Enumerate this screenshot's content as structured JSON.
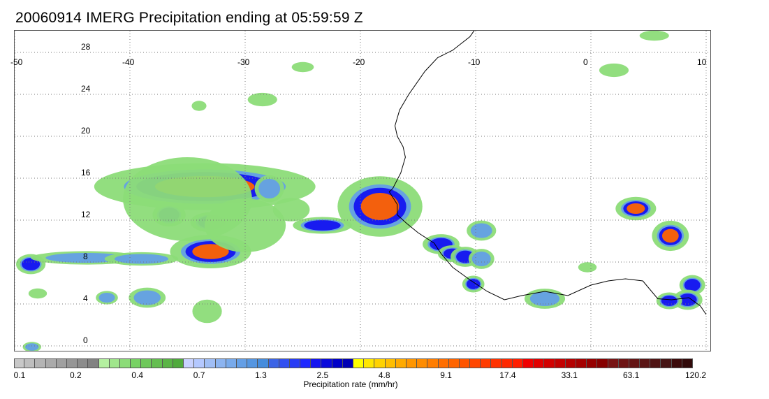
{
  "title": "20060914 IMERG Precipitation ending at 05:59:59 Z",
  "map": {
    "lon_min": -50,
    "lon_max": 10,
    "lat_min": -1,
    "lat_max": 30,
    "lon_ticks": [
      -50,
      -40,
      -30,
      -20,
      -10,
      0,
      10
    ],
    "lon_labels": [
      "-50",
      "-40",
      "-30",
      "-20",
      "-10",
      "0",
      "10"
    ],
    "lat_ticks": [
      0,
      4,
      8,
      12,
      16,
      20,
      24,
      28
    ],
    "lat_labels": [
      "0",
      "4",
      "8",
      "12",
      "16",
      "20",
      "24",
      "28"
    ],
    "gridlines": true,
    "coastline_color": "#000000"
  },
  "colorbar": {
    "label": "Precipitation rate (mm/hr)",
    "tick_labels": [
      "0.1",
      "0.2",
      "0.4",
      "0.7",
      "1.3",
      "2.5",
      "4.8",
      "9.1",
      "17.4",
      "33.1",
      "63.1",
      "120.2"
    ],
    "colors": [
      "#c8c8c8",
      "#bebebe",
      "#b4b4b4",
      "#aaaaaa",
      "#a0a0a0",
      "#969696",
      "#8c8c8c",
      "#828282",
      "#b4f0a0",
      "#a0e68c",
      "#8cdc78",
      "#78d264",
      "#6ec85a",
      "#64be50",
      "#5ab446",
      "#50aa3c",
      "#c8d2ff",
      "#b4c8ff",
      "#a0bef5",
      "#8cb4f0",
      "#78aaeb",
      "#649fe6",
      "#5596e1",
      "#468cdc",
      "#3c64e6",
      "#3250f0",
      "#283cf5",
      "#1e28ff",
      "#1414f0",
      "#0a0adc",
      "#0000c8",
      "#0000b4",
      "#ffff00",
      "#ffe600",
      "#ffd200",
      "#ffbe00",
      "#ffaa00",
      "#ff9600",
      "#ff8c00",
      "#ff7d00",
      "#ff6e00",
      "#ff6400",
      "#ff5500",
      "#ff4600",
      "#ff3c00",
      "#ff3200",
      "#ff2800",
      "#ff1e00",
      "#f00000",
      "#e10000",
      "#d20000",
      "#c30000",
      "#b40000",
      "#a50000",
      "#960000",
      "#870000",
      "#781414",
      "#6e1414",
      "#641414",
      "#5a1414",
      "#501414",
      "#461414",
      "#3c0a0a",
      "#320a0a"
    ]
  },
  "precip_cells": [
    {
      "lon": -33.5,
      "lat": 15.2,
      "rx": 6.0,
      "ry": 1.4,
      "level": 3
    },
    {
      "lon": -33.0,
      "lat": 9.0,
      "rx": 2.2,
      "ry": 1.0,
      "level": 3
    },
    {
      "lon": -18.3,
      "lat": 13.3,
      "rx": 2.3,
      "ry": 1.8,
      "level": 3
    },
    {
      "lon": -13.0,
      "lat": 9.7,
      "rx": 1.0,
      "ry": 0.6,
      "level": 2
    },
    {
      "lon": -12.0,
      "lat": 8.8,
      "rx": 0.8,
      "ry": 0.5,
      "level": 2
    },
    {
      "lon": -10.9,
      "lat": 8.5,
      "rx": 0.8,
      "ry": 0.6,
      "level": 2
    },
    {
      "lon": -10.2,
      "lat": 5.9,
      "rx": 0.6,
      "ry": 0.5,
      "level": 2
    },
    {
      "lon": -23.3,
      "lat": 11.5,
      "rx": 1.6,
      "ry": 0.5,
      "level": 2
    },
    {
      "lon": -36.6,
      "lat": 12.5,
      "rx": 0.9,
      "ry": 0.7,
      "level": 2
    },
    {
      "lon": -33.0,
      "lat": 11.8,
      "rx": 1.1,
      "ry": 0.6,
      "level": 2
    },
    {
      "lon": -48.6,
      "lat": 7.8,
      "rx": 0.8,
      "ry": 0.6,
      "level": 2
    },
    {
      "lon": 3.9,
      "lat": 13.1,
      "rx": 1.1,
      "ry": 0.7,
      "level": 3
    },
    {
      "lon": 6.9,
      "lat": 10.5,
      "rx": 1.0,
      "ry": 0.9,
      "level": 3
    },
    {
      "lon": 8.8,
      "lat": 5.8,
      "rx": 0.7,
      "ry": 0.6,
      "level": 2
    },
    {
      "lon": 8.4,
      "lat": 4.4,
      "rx": 0.8,
      "ry": 0.6,
      "level": 2
    },
    {
      "lon": 6.8,
      "lat": 4.3,
      "rx": 0.7,
      "ry": 0.5,
      "level": 2
    },
    {
      "lon": -38.5,
      "lat": 4.6,
      "rx": 1.0,
      "ry": 0.6,
      "level": 1
    },
    {
      "lon": -42.0,
      "lat": 4.6,
      "rx": 0.6,
      "ry": 0.4,
      "level": 1
    },
    {
      "lon": -33.3,
      "lat": 3.3,
      "rx": 0.8,
      "ry": 0.7,
      "level": 0
    },
    {
      "lon": -4.0,
      "lat": 4.5,
      "rx": 1.1,
      "ry": 0.6,
      "level": 1
    },
    {
      "lon": -9.5,
      "lat": 11.0,
      "rx": 0.8,
      "ry": 0.6,
      "level": 1
    },
    {
      "lon": -9.5,
      "lat": 8.3,
      "rx": 0.7,
      "ry": 0.6,
      "level": 1
    },
    {
      "lon": -43.8,
      "lat": 8.4,
      "rx": 3.0,
      "ry": 0.4,
      "level": 1
    },
    {
      "lon": -39.0,
      "lat": 8.3,
      "rx": 2.0,
      "ry": 0.4,
      "level": 1
    },
    {
      "lon": -27.9,
      "lat": 15.0,
      "rx": 0.8,
      "ry": 0.8,
      "level": 1
    },
    {
      "lon": -30.0,
      "lat": 11.5,
      "rx": 2.2,
      "ry": 1.6,
      "level": 0
    },
    {
      "lon": -26.0,
      "lat": 13.0,
      "rx": 1.0,
      "ry": 0.7,
      "level": 0
    },
    {
      "lon": -35.0,
      "lat": 14.0,
      "rx": 3.5,
      "ry": 2.5,
      "level": 0
    },
    {
      "lon": -34.0,
      "lat": 22.9,
      "rx": 0.4,
      "ry": 0.3,
      "level": 0
    },
    {
      "lon": -28.5,
      "lat": 23.5,
      "rx": 0.8,
      "ry": 0.4,
      "level": 0
    },
    {
      "lon": 2.0,
      "lat": 26.3,
      "rx": 0.8,
      "ry": 0.4,
      "level": 0
    },
    {
      "lon": -25.0,
      "lat": 26.6,
      "rx": 0.6,
      "ry": 0.3,
      "level": 0
    },
    {
      "lon": 5.5,
      "lat": 29.6,
      "rx": 0.8,
      "ry": 0.3,
      "level": 0
    },
    {
      "lon": -48.0,
      "lat": 5.0,
      "rx": 0.5,
      "ry": 0.3,
      "level": 0
    },
    {
      "lon": -0.3,
      "lat": 7.5,
      "rx": 0.5,
      "ry": 0.3,
      "level": 0
    },
    {
      "lon": -48.5,
      "lat": -0.1,
      "rx": 0.5,
      "ry": 0.3,
      "level": 1
    }
  ],
  "level_colors": [
    "#8cdc78",
    "#649fe6",
    "#1414f0",
    "#ff6400"
  ],
  "coastline": {
    "africa_west": [
      [
        -9.8,
        30.6
      ],
      [
        -10.5,
        29.5
      ],
      [
        -12.0,
        28.2
      ],
      [
        -13.3,
        27.5
      ],
      [
        -14.4,
        26.2
      ],
      [
        -15.8,
        24.0
      ],
      [
        -16.6,
        22.5
      ],
      [
        -17.0,
        21.0
      ],
      [
        -16.8,
        20.0
      ],
      [
        -16.3,
        19.0
      ],
      [
        -16.1,
        18.0
      ],
      [
        -16.5,
        16.5
      ],
      [
        -17.2,
        15.0
      ],
      [
        -17.5,
        14.7
      ],
      [
        -16.8,
        13.5
      ],
      [
        -16.8,
        12.5
      ],
      [
        -16.0,
        11.7
      ],
      [
        -15.0,
        10.8
      ],
      [
        -13.6,
        9.8
      ],
      [
        -13.0,
        8.8
      ],
      [
        -12.0,
        7.5
      ],
      [
        -10.5,
        6.3
      ],
      [
        -9.0,
        5.2
      ],
      [
        -7.5,
        4.4
      ],
      [
        -6.0,
        4.8
      ],
      [
        -4.0,
        5.2
      ],
      [
        -2.0,
        4.8
      ],
      [
        0.0,
        5.8
      ],
      [
        1.5,
        6.2
      ],
      [
        3.0,
        6.4
      ],
      [
        4.5,
        6.2
      ],
      [
        5.8,
        4.5
      ],
      [
        7.0,
        4.4
      ],
      [
        8.5,
        4.6
      ],
      [
        9.5,
        3.8
      ],
      [
        10.0,
        3.0
      ]
    ]
  }
}
